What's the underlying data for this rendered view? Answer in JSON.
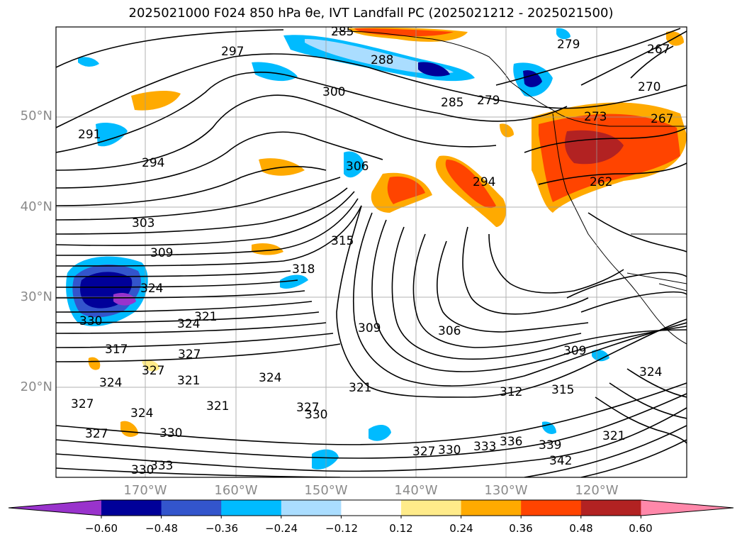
{
  "title": "2025021000 F024 850 hPa θe, IVT Landfall PC (2025021212 - 2025021500)",
  "lon_labels": [
    "170°W",
    "160°W",
    "150°W",
    "140°W",
    "130°W",
    "120°W"
  ],
  "lat_labels": [
    "50°N",
    "40°N",
    "30°N",
    "20°N"
  ],
  "contour_labels": [
    "285",
    "297",
    "288",
    "300",
    "285",
    "279",
    "279",
    "267",
    "270",
    "267",
    "273",
    "291",
    "294",
    "306",
    "294",
    "262",
    "303",
    "315",
    "309",
    "318",
    "324",
    "330",
    "321",
    "324",
    "327",
    "309",
    "306",
    "309",
    "327",
    "321",
    "324",
    "317",
    "324",
    "327",
    "321",
    "321",
    "312",
    "315",
    "324",
    "327",
    "330",
    "324",
    "327",
    "330",
    "327",
    "330",
    "333",
    "336",
    "339",
    "342",
    "321",
    "330",
    "333"
  ],
  "colorbar": {
    "ticks": [
      "−0.60",
      "−0.48",
      "−0.36",
      "−0.24",
      "−0.12",
      "0.12",
      "0.24",
      "0.36",
      "0.48",
      "0.60"
    ],
    "colors": [
      "#9933cc",
      "#000099",
      "#3355cc",
      "#00bbff",
      "#aaddff",
      "#ffffff",
      "#ffeb8a",
      "#ffaa00",
      "#ff4400",
      "#b22222",
      "#ff88aa"
    ]
  }
}
